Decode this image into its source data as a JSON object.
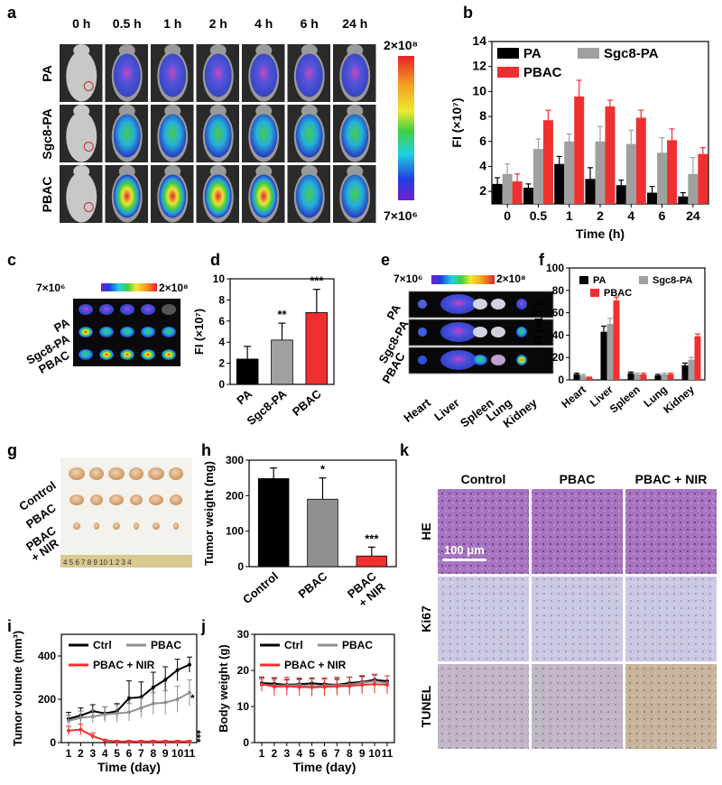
{
  "panels": {
    "a": "a",
    "b": "b",
    "c": "c",
    "d": "d",
    "e": "e",
    "f": "f",
    "g": "g",
    "h": "h",
    "i": "i",
    "j": "j",
    "k": "k"
  },
  "panel_a": {
    "times": [
      "0 h",
      "0.5 h",
      "1 h",
      "2 h",
      "4 h",
      "6 h",
      "24 h"
    ],
    "rows": [
      "PA",
      "Sgc8-PA",
      "PBAC"
    ],
    "scale_max": "2×10⁸",
    "scale_min": "7×10⁶"
  },
  "panel_c": {
    "scale_min": "7×10⁶",
    "scale_max": "2×10⁸",
    "rows": [
      "PA",
      "Sgc8-PA",
      "PBAC"
    ]
  },
  "panel_e": {
    "scale_min": "7×10⁶",
    "scale_max": "2×10⁸",
    "rows": [
      "PA",
      "Sgc8-PA",
      "PBAC"
    ],
    "organs": [
      "Heart",
      "Liver",
      "Spleen",
      "Lung",
      "Kidney"
    ]
  },
  "panel_g": {
    "rows": [
      "Control",
      "PBAC",
      "PBAC\n+ NIR"
    ],
    "ruler": "4 5 6 7 8 9 10 1 2 3 4"
  },
  "panel_k": {
    "cols": [
      "Control",
      "PBAC",
      "PBAC + NIR"
    ],
    "rows": [
      "HE",
      "Ki67",
      "TUNEL"
    ],
    "scalebar": "100 μm",
    "colors": {
      "HE": "#a26cbd",
      "Ki67": "#c6c5e0",
      "TUNEL": "#bdb3bf"
    }
  },
  "chart_data": [
    {
      "id": "b",
      "type": "bar",
      "xlabel": "Time (h)",
      "ylabel": "FI (×10⁷)",
      "ylim": [
        1,
        14
      ],
      "yticks": [
        2,
        4,
        6,
        8,
        10,
        12,
        14
      ],
      "categories": [
        "0",
        "0.5",
        "1",
        "2",
        "4",
        "6",
        "24"
      ],
      "series": [
        {
          "name": "PA",
          "color": "#000000",
          "values": [
            2.6,
            2.3,
            4.2,
            3.0,
            2.5,
            1.9,
            1.6
          ],
          "err": [
            0.5,
            0.3,
            0.6,
            0.9,
            0.4,
            0.5,
            0.3
          ]
        },
        {
          "name": "Sgc8-PA",
          "color": "#a0a0a0",
          "values": [
            3.4,
            5.4,
            6.0,
            6.0,
            5.8,
            5.1,
            3.4
          ],
          "err": [
            0.8,
            0.8,
            0.6,
            1.2,
            1.1,
            1.2,
            1.3
          ]
        },
        {
          "name": "PBAC",
          "color": "#f03030",
          "values": [
            2.8,
            7.7,
            9.6,
            8.8,
            7.9,
            6.1,
            5.0
          ],
          "err": [
            0.6,
            0.8,
            1.3,
            0.5,
            0.6,
            0.9,
            0.5
          ]
        }
      ]
    },
    {
      "id": "d",
      "type": "bar",
      "ylabel": "FI (×10⁷)",
      "ylim": [
        0,
        10
      ],
      "yticks": [
        0,
        2,
        4,
        6,
        8,
        10
      ],
      "categories": [
        "PA",
        "Sgc8-PA",
        "PBAC"
      ],
      "values": [
        2.4,
        4.2,
        6.8
      ],
      "err": [
        1.2,
        1.6,
        2.2
      ],
      "colors": [
        "#000000",
        "#a0a0a0",
        "#f03030"
      ],
      "annotations": [
        "",
        "**",
        "***"
      ]
    },
    {
      "id": "f",
      "type": "bar",
      "ylabel": "FI (×10⁷)",
      "ylim": [
        0,
        100
      ],
      "yticks": [
        0,
        20,
        40,
        60,
        80,
        100
      ],
      "categories": [
        "Heart",
        "Liver",
        "Spleen",
        "Lung",
        "Kidney"
      ],
      "series": [
        {
          "name": "PA",
          "color": "#000000",
          "values": [
            5,
            43,
            6,
            4,
            13
          ],
          "err": [
            1,
            5,
            1,
            1,
            2
          ]
        },
        {
          "name": "Sgc8-PA",
          "color": "#a0a0a0",
          "values": [
            4,
            50,
            5,
            5,
            18
          ],
          "err": [
            1,
            5,
            1,
            1,
            2
          ]
        },
        {
          "name": "PBAC",
          "color": "#f03030",
          "values": [
            2,
            71,
            5,
            5,
            39
          ],
          "err": [
            0.5,
            3,
            1,
            1,
            2
          ]
        }
      ]
    },
    {
      "id": "h",
      "type": "bar",
      "ylabel": "Tumor weight (mg)",
      "ylim": [
        0,
        300
      ],
      "yticks": [
        0,
        100,
        200,
        300
      ],
      "categories": [
        "Control",
        "PBAC",
        "PBAC\n+ NIR"
      ],
      "values": [
        248,
        190,
        30
      ],
      "err": [
        30,
        60,
        25
      ],
      "colors": [
        "#000000",
        "#909090",
        "#f03030"
      ],
      "annotations": [
        "",
        "*",
        "***"
      ]
    },
    {
      "id": "i",
      "type": "line",
      "xlabel": "Time (day)",
      "ylabel": "Tumor volume (mm³)",
      "ylim": [
        0,
        500
      ],
      "yticks": [
        0,
        200,
        400
      ],
      "x": [
        1,
        2,
        3,
        4,
        5,
        6,
        7,
        8,
        9,
        10,
        11
      ],
      "series": [
        {
          "name": "Ctrl",
          "color": "#000000",
          "values": [
            110,
            125,
            145,
            135,
            145,
            205,
            210,
            255,
            290,
            335,
            360
          ],
          "err": [
            30,
            35,
            30,
            30,
            35,
            80,
            70,
            70,
            60,
            50,
            35
          ]
        },
        {
          "name": "PBAC",
          "color": "#909090",
          "values": [
            100,
            115,
            120,
            130,
            135,
            140,
            160,
            180,
            185,
            200,
            230
          ],
          "err": [
            25,
            30,
            30,
            35,
            40,
            40,
            45,
            50,
            55,
            60,
            60
          ]
        },
        {
          "name": "PBAC + NIR",
          "color": "#f03030",
          "values": [
            55,
            60,
            30,
            10,
            5,
            5,
            5,
            5,
            5,
            5,
            5
          ],
          "err": [
            20,
            25,
            15,
            5,
            5,
            5,
            5,
            5,
            5,
            5,
            5
          ]
        }
      ],
      "annotations": [
        "*",
        "***"
      ]
    },
    {
      "id": "j",
      "type": "line",
      "xlabel": "Time (day)",
      "ylabel": "Body weight (g)",
      "ylim": [
        0,
        30
      ],
      "yticks": [
        0,
        10,
        20,
        30
      ],
      "x": [
        1,
        2,
        3,
        4,
        5,
        6,
        7,
        8,
        9,
        10,
        11
      ],
      "series": [
        {
          "name": "Ctrl",
          "color": "#000000",
          "values": [
            16.5,
            16.3,
            16.0,
            16.2,
            16.4,
            16.2,
            16.0,
            16.5,
            16.8,
            17.4,
            17.0
          ],
          "err": [
            1.5,
            1.5,
            1.5,
            1.5,
            1.5,
            1.5,
            1.5,
            1.5,
            1.5,
            1.5,
            1.5
          ]
        },
        {
          "name": "PBAC",
          "color": "#909090",
          "values": [
            16.0,
            15.8,
            15.8,
            15.9,
            15.6,
            15.8,
            15.9,
            16.0,
            16.6,
            17.0,
            16.5
          ],
          "err": [
            1.5,
            1.5,
            1.5,
            1.5,
            2,
            2,
            2,
            2,
            2,
            2,
            2
          ]
        },
        {
          "name": "PBAC + NIR",
          "color": "#f03030",
          "values": [
            16.2,
            15.5,
            15.6,
            15.4,
            15.3,
            15.4,
            15.6,
            15.7,
            16.0,
            16.2,
            16.0
          ],
          "err": [
            2,
            2.5,
            2.5,
            2.5,
            2.5,
            2.5,
            2.5,
            2.5,
            2.5,
            2.5,
            2.5
          ]
        }
      ]
    }
  ]
}
